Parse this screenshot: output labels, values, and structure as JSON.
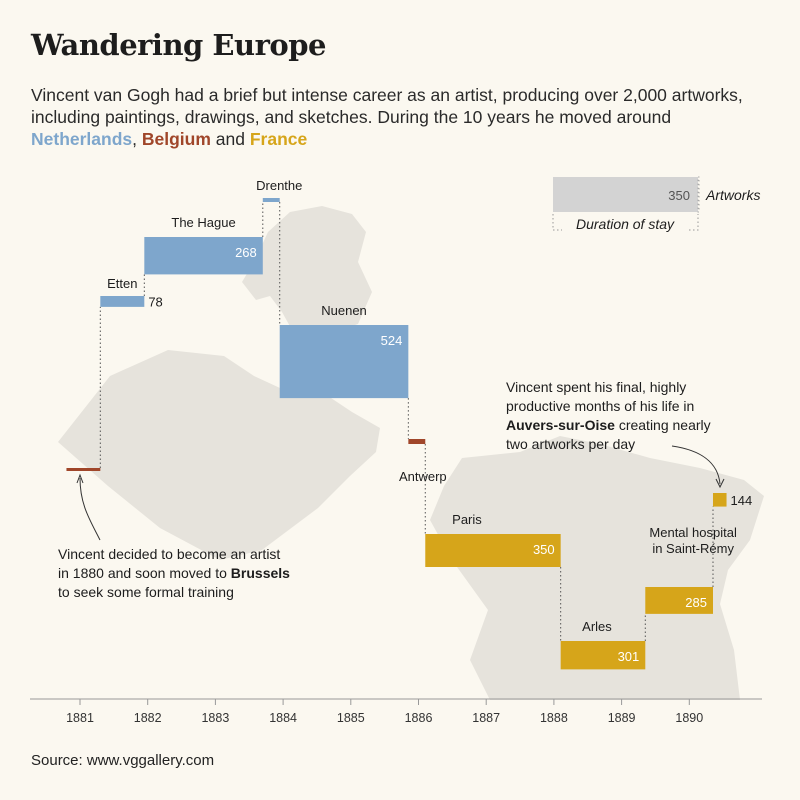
{
  "header": {
    "title": "Wandering Europe",
    "subtitle_parts": [
      {
        "text": "Vincent van Gogh had a brief but intense career as an artist, producing over 2,000 artworks, including paintings, drawings, and sketches. During the 10 years he moved around ",
        "color": null
      },
      {
        "text": "Netherlands",
        "color": "#7ea6cc"
      },
      {
        "text": ", ",
        "color": null
      },
      {
        "text": "Belgium",
        "color": "#a0462a"
      },
      {
        "text": " and ",
        "color": null
      },
      {
        "text": "France",
        "color": "#d6a51a"
      }
    ]
  },
  "source": "Source:  www.vggallery.com",
  "colors": {
    "netherlands": "#7ea6cc",
    "belgium": "#a0462a",
    "france": "#d6a51a",
    "legend_bar": "#d3d3d3",
    "map": "#e6e3dc",
    "axis": "#999999"
  },
  "chart_data": {
    "type": "bar",
    "title": "Wandering Europe",
    "xlabel": "",
    "ylabel": "Artworks",
    "xlim": [
      1880.4,
      1890.9
    ],
    "ticks": [
      1881,
      1882,
      1883,
      1884,
      1885,
      1886,
      1887,
      1888,
      1889,
      1890
    ],
    "legend": {
      "value": "350",
      "value_label": "Artworks",
      "duration_label": "Duration of stay"
    },
    "stays": [
      {
        "place": "Brussels",
        "country": "belgium",
        "start": 1880.8,
        "end": 1881.3,
        "artworks": null,
        "value_label": "",
        "label": ""
      },
      {
        "place": "Etten",
        "country": "netherlands",
        "start": 1881.3,
        "end": 1881.95,
        "artworks": 78,
        "value_label": "78",
        "label": "Etten"
      },
      {
        "place": "The Hague",
        "country": "netherlands",
        "start": 1881.95,
        "end": 1883.7,
        "artworks": 268,
        "value_label": "268",
        "label": "The Hague"
      },
      {
        "place": "Drenthe",
        "country": "netherlands",
        "start": 1883.7,
        "end": 1883.95,
        "artworks": 10,
        "value_label": "",
        "label": "Drenthe"
      },
      {
        "place": "Nuenen",
        "country": "netherlands",
        "start": 1883.95,
        "end": 1885.85,
        "artworks": 524,
        "value_label": "524",
        "label": "Nuenen"
      },
      {
        "place": "Antwerp",
        "country": "belgium",
        "start": 1885.85,
        "end": 1886.1,
        "artworks": 20,
        "value_label": "",
        "label": "Antwerp"
      },
      {
        "place": "Paris",
        "country": "france",
        "start": 1886.1,
        "end": 1888.1,
        "artworks": 350,
        "value_label": "350",
        "label": "Paris"
      },
      {
        "place": "Arles",
        "country": "france",
        "start": 1888.1,
        "end": 1889.35,
        "artworks": 301,
        "value_label": "301",
        "label": "Arles"
      },
      {
        "place": "Saint-Rémy",
        "country": "france",
        "start": 1889.35,
        "end": 1890.35,
        "artworks": 285,
        "value_label": "285",
        "label_lines": [
          "Mental hospital",
          "in Saint-Rémy"
        ]
      },
      {
        "place": "Auvers-sur-Oise",
        "country": "france",
        "start": 1890.35,
        "end": 1890.55,
        "artworks": 144,
        "value_label": "144",
        "label": ""
      }
    ],
    "annotations": {
      "brussels": [
        [
          {
            "text": "Vincent decided to become an artist",
            "bold": false
          }
        ],
        [
          {
            "text": "in 1880 and soon moved to ",
            "bold": false
          },
          {
            "text": "Brussels",
            "bold": true
          }
        ],
        [
          {
            "text": "to seek some formal training",
            "bold": false
          }
        ]
      ],
      "auvers": [
        [
          {
            "text": "Vincent spent his final, highly",
            "bold": false
          }
        ],
        [
          {
            "text": "productive months of his life in",
            "bold": false
          }
        ],
        [
          {
            "text": "Auvers-sur-Oise",
            "bold": true
          },
          {
            "text": " creating nearly",
            "bold": false
          }
        ],
        [
          {
            "text": "two artworks per day",
            "bold": false
          }
        ]
      ]
    }
  }
}
